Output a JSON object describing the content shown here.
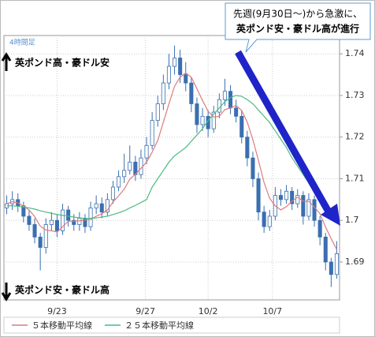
{
  "chart_data": {
    "type": "candlestick",
    "timeframe": "4時間足",
    "callout": [
      "先週(9月30日～)から急激に、",
      "英ポンド安・豪ドル高が進行"
    ],
    "upper_label": "英ポンド高・豪ドル安",
    "lower_label": "英ポンド安・豪ドル高",
    "up_color": "#ffffff",
    "down_color": "#3a6fb0",
    "edge_color": "#3a6fb0",
    "open": [
      1.703,
      1.704,
      1.705,
      1.7035,
      1.701,
      1.699,
      1.696,
      1.6935,
      1.699,
      1.7,
      1.6975,
      1.7025,
      1.7,
      1.699,
      1.7005,
      1.6985,
      1.703,
      1.704,
      1.702,
      1.705,
      1.708,
      1.7105,
      1.712,
      1.714,
      1.711,
      1.715,
      1.718,
      1.724,
      1.728,
      1.733,
      1.737,
      1.739,
      1.735,
      1.733,
      1.728,
      1.723,
      1.725,
      1.722,
      1.726,
      1.729,
      1.731,
      1.727,
      1.725,
      1.72,
      1.715,
      1.71,
      1.702,
      1.6985,
      1.701,
      1.706,
      1.705,
      1.707,
      1.704,
      1.706,
      1.701,
      1.705,
      1.7,
      1.696,
      1.69,
      1.687
    ],
    "high": [
      1.706,
      1.707,
      1.7065,
      1.7045,
      1.7025,
      1.7005,
      1.697,
      1.7005,
      1.702,
      1.7015,
      1.704,
      1.7035,
      1.7015,
      1.702,
      1.7015,
      1.7045,
      1.706,
      1.7055,
      1.7065,
      1.7095,
      1.712,
      1.716,
      1.718,
      1.7155,
      1.717,
      1.72,
      1.726,
      1.73,
      1.735,
      1.74,
      1.742,
      1.741,
      1.738,
      1.7345,
      1.7295,
      1.727,
      1.7265,
      1.7275,
      1.7305,
      1.734,
      1.7325,
      1.729,
      1.7265,
      1.7215,
      1.7165,
      1.7115,
      1.7035,
      1.7025,
      1.708,
      1.7075,
      1.7085,
      1.708,
      1.7075,
      1.707,
      1.7065,
      1.706,
      1.701,
      1.697,
      1.691,
      1.695
    ],
    "low": [
      1.7015,
      1.7025,
      1.702,
      1.6995,
      1.6975,
      1.6945,
      1.688,
      1.692,
      1.6975,
      1.696,
      1.6965,
      1.6985,
      1.6975,
      1.6975,
      1.697,
      1.6975,
      1.7015,
      1.7005,
      1.701,
      1.704,
      1.707,
      1.709,
      1.711,
      1.7095,
      1.71,
      1.7135,
      1.717,
      1.7225,
      1.7265,
      1.7315,
      1.735,
      1.733,
      1.731,
      1.726,
      1.721,
      1.7215,
      1.72,
      1.721,
      1.7245,
      1.7275,
      1.7255,
      1.7235,
      1.7185,
      1.713,
      1.708,
      1.7,
      1.697,
      1.6975,
      1.7,
      1.7035,
      1.704,
      1.7025,
      1.703,
      1.699,
      1.7,
      1.6985,
      1.694,
      1.688,
      1.684,
      1.686
    ],
    "close": [
      1.704,
      1.705,
      1.7035,
      1.701,
      1.699,
      1.696,
      1.6935,
      1.699,
      1.7,
      1.6975,
      1.7025,
      1.7,
      1.699,
      1.7005,
      1.6985,
      1.703,
      1.704,
      1.702,
      1.705,
      1.708,
      1.7105,
      1.712,
      1.714,
      1.711,
      1.715,
      1.718,
      1.724,
      1.728,
      1.733,
      1.737,
      1.739,
      1.735,
      1.733,
      1.728,
      1.723,
      1.725,
      1.722,
      1.726,
      1.729,
      1.731,
      1.727,
      1.725,
      1.72,
      1.715,
      1.71,
      1.702,
      1.6985,
      1.701,
      1.706,
      1.705,
      1.707,
      1.704,
      1.706,
      1.701,
      1.705,
      1.7,
      1.696,
      1.69,
      1.687,
      1.692
    ],
    "series": [
      {
        "name": "５本移動平均線",
        "color": "#e07a7a",
        "values": [
          1.704,
          1.7045,
          1.7042,
          1.7034,
          1.7025,
          1.7009,
          1.6986,
          1.6977,
          1.6975,
          1.6972,
          1.6985,
          1.6998,
          1.6998,
          1.6999,
          1.7001,
          1.7002,
          1.701,
          1.7016,
          1.7025,
          1.7044,
          1.7059,
          1.7075,
          1.7099,
          1.7111,
          1.7125,
          1.714,
          1.7164,
          1.7192,
          1.7236,
          1.728,
          1.7322,
          1.7344,
          1.7354,
          1.7344,
          1.7316,
          1.7288,
          1.7262,
          1.7248,
          1.725,
          1.7266,
          1.727,
          1.7276,
          1.7264,
          1.7236,
          1.7194,
          1.7144,
          1.7091,
          1.7053,
          1.7035,
          1.7025,
          1.7033,
          1.7046,
          1.7056,
          1.7046,
          1.7046,
          1.7032,
          1.7016,
          1.6984,
          1.6956,
          1.693
        ]
      },
      {
        "name": "２５本移動平均線",
        "color": "#4cba80",
        "values": [
          1.7035,
          1.7035,
          1.7034,
          1.7032,
          1.703,
          1.7027,
          1.7023,
          1.702,
          1.7017,
          1.7014,
          1.7012,
          1.701,
          1.7008,
          1.7006,
          1.7005,
          1.7005,
          1.7006,
          1.7008,
          1.701,
          1.7014,
          1.7018,
          1.7023,
          1.703,
          1.7036,
          1.7043,
          1.705,
          1.708,
          1.71,
          1.712,
          1.714,
          1.7155,
          1.7165,
          1.7175,
          1.719,
          1.7205,
          1.722,
          1.724,
          1.7255,
          1.727,
          1.7285,
          1.7295,
          1.73,
          1.7298,
          1.729,
          1.728,
          1.7265,
          1.725,
          1.7235,
          1.7215,
          1.7195,
          1.7175,
          1.715,
          1.713,
          1.711,
          1.709,
          1.707,
          1.705,
          1.7035,
          1.702,
          1.7005
        ]
      }
    ],
    "xlim": [
      -0.5,
      59.5
    ],
    "xticks": [
      {
        "value": 9,
        "label": "9/23"
      },
      {
        "value": 24.8,
        "label": "9/27"
      },
      {
        "value": 36,
        "label": "10/2"
      },
      {
        "value": 47.5,
        "label": "10/7"
      }
    ],
    "ylim": [
      1.6809,
      1.7444
    ],
    "yticks": [
      1.74,
      1.73,
      1.72,
      1.71,
      1.7,
      1.69
    ],
    "grid": true
  }
}
